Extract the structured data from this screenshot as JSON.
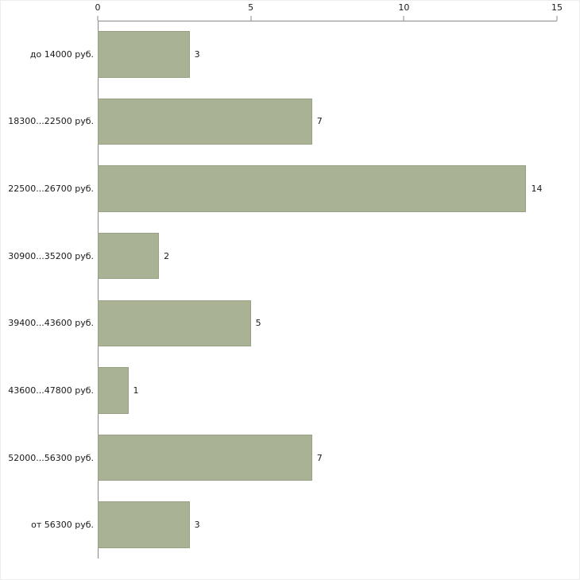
{
  "chart_data": {
    "type": "bar",
    "orientation": "horizontal",
    "title": "",
    "xlabel": "",
    "ylabel": "",
    "categories": [
      "до 14000 руб.",
      "18300...22500 руб.",
      "22500...26700 руб.",
      "30900...35200 руб.",
      "39400...43600 руб.",
      "43600...47800 руб.",
      "52000...56300 руб.",
      "от 56300 руб."
    ],
    "values": [
      3,
      7,
      14,
      2,
      5,
      1,
      7,
      3
    ],
    "xlim": [
      0,
      15
    ],
    "xticks": [
      0,
      5,
      10,
      15
    ],
    "grid": false,
    "legend": false,
    "bar_color": "#a9b294",
    "bar_border_color": "#97a284",
    "axis_color": "#8a8a8a",
    "text_color": "#1a1a1a"
  }
}
